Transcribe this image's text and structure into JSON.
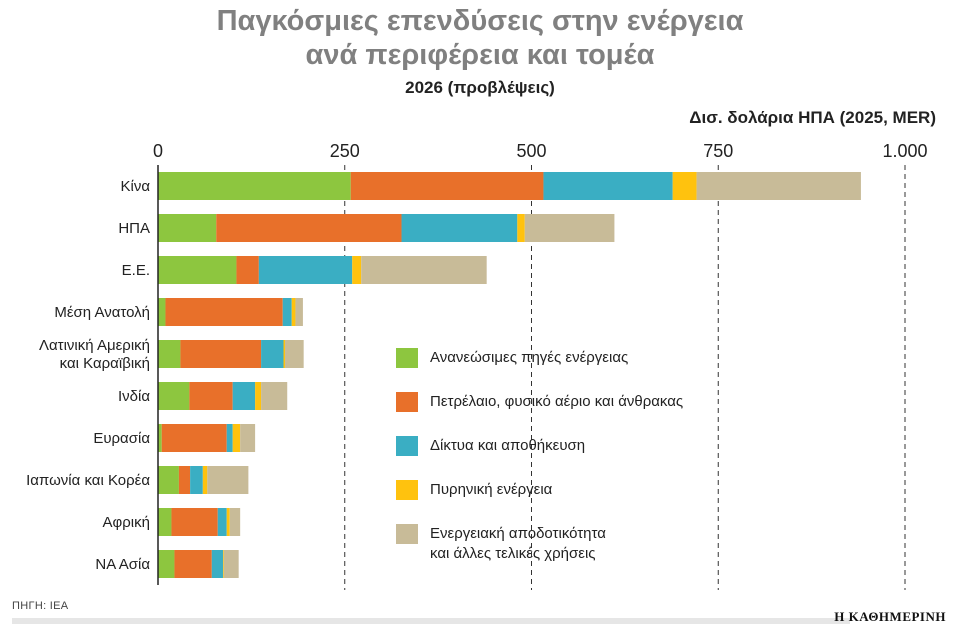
{
  "title_line1": "Παγκόσμιες επενδύσεις στην ενέργεια",
  "title_line2": "ανά περιφέρεια και τομέα",
  "subtitle": "2026 (προβλέψεις)",
  "unit": "Δισ. δολάρια ΗΠΑ (2025, MER)",
  "source": "ΠΗΓΗ: IEA",
  "brand": "Η ΚΑΘΗΜΕΡΙΝΗ",
  "chart_data": {
    "type": "bar",
    "orientation": "horizontal",
    "stacked": true,
    "categories": [
      "Κίνα",
      "ΗΠΑ",
      "Ε.Ε.",
      "Μέση Ανατολή",
      "Λατινική Αμερική\nκαι Καραϊβική",
      "Ινδία",
      "Ευρασία",
      "Ιαπωνία και Κορέα",
      "Αφρική",
      "ΝΑ Ασία"
    ],
    "xlim": [
      0,
      1000
    ],
    "x_ticks": [
      0,
      250,
      500,
      750,
      1000
    ],
    "x_tick_labels": [
      "0",
      "250",
      "500",
      "750",
      "1.000"
    ],
    "grid": "vertical dashed",
    "legend_position": "center-right",
    "series": [
      {
        "name": "Ανανεώσιμες πηγές ενέργειας",
        "color": "#8dc63f",
        "values": [
          258,
          78,
          105,
          10,
          30,
          42,
          5,
          28,
          18,
          22
        ]
      },
      {
        "name": "Πετρέλαιο, φυσικό αέριο και άνθρακας",
        "color": "#e8702a",
        "values": [
          258,
          248,
          30,
          157,
          108,
          58,
          87,
          15,
          62,
          50
        ]
      },
      {
        "name": "Δίκτυα και αποθήκευση",
        "color": "#3aaec3",
        "values": [
          173,
          155,
          125,
          12,
          30,
          30,
          8,
          17,
          12,
          15
        ]
      },
      {
        "name": "Πυρηνική ενέργεια",
        "color": "#ffc20e",
        "values": [
          32,
          10,
          12,
          5,
          2,
          8,
          10,
          6,
          4,
          1
        ]
      },
      {
        "name": "Ενεργειακή αποδοτικότητα\nκαι άλλες τελικές χρήσεις",
        "color": "#c8bb98",
        "values": [
          220,
          120,
          168,
          10,
          25,
          35,
          20,
          55,
          14,
          20
        ]
      }
    ]
  }
}
